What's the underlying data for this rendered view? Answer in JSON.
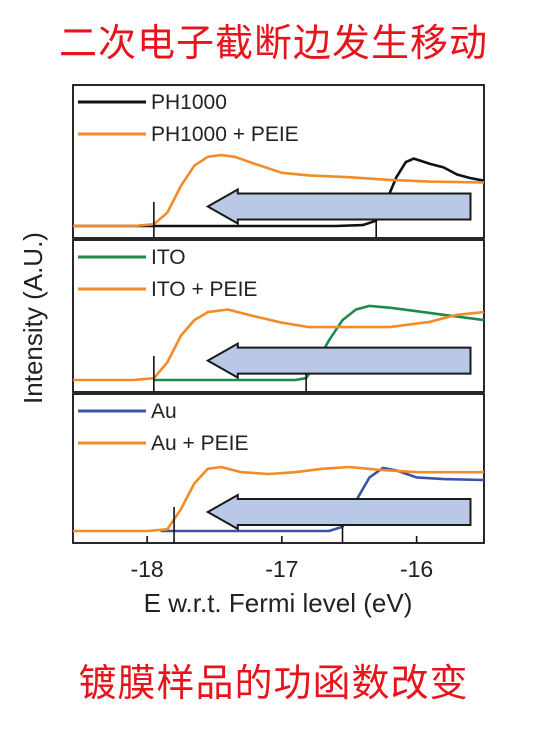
{
  "captions": {
    "top": "二次电子截断边发生移动",
    "bottom": "镀膜样品的功函数改变"
  },
  "colors": {
    "caption": "#e8141b",
    "black": "#111111",
    "orange": "#f28c28",
    "green": "#1f8a4c",
    "blue": "#3a55a8",
    "arrow_fill": "#b8c8e6",
    "arrow_stroke": "#1a1a1a"
  },
  "chart_data": {
    "type": "line",
    "xlabel": "E w.r.t. Fermi level (eV)",
    "ylabel": "Intensity (A.U.)",
    "xlim": [
      -18.55,
      -15.5
    ],
    "xticks": [
      {
        "value": -18,
        "label": "-18"
      },
      {
        "value": -17,
        "label": "-17"
      },
      {
        "value": -16,
        "label": "-16"
      }
    ],
    "panels": [
      {
        "legend": [
          "PH1000",
          "PH1000 + PEIE"
        ],
        "series": [
          {
            "name": "PH1000",
            "color": "black",
            "cutoff": -16.3,
            "points": [
              [
                -18.55,
                0.0
              ],
              [
                -16.6,
                0.0
              ],
              [
                -16.4,
                0.01
              ],
              [
                -16.3,
                0.06
              ],
              [
                -16.22,
                0.3
              ],
              [
                -16.15,
                0.55
              ],
              [
                -16.08,
                0.72
              ],
              [
                -16.02,
                0.76
              ],
              [
                -15.9,
                0.7
              ],
              [
                -15.8,
                0.66
              ],
              [
                -15.7,
                0.58
              ],
              [
                -15.6,
                0.54
              ],
              [
                -15.5,
                0.51
              ]
            ]
          },
          {
            "name": "PH1000 + PEIE",
            "color": "orange",
            "cutoff": -17.95,
            "points": [
              [
                -18.55,
                0.0
              ],
              [
                -18.1,
                0.0
              ],
              [
                -17.95,
                0.02
              ],
              [
                -17.85,
                0.15
              ],
              [
                -17.75,
                0.45
              ],
              [
                -17.65,
                0.68
              ],
              [
                -17.55,
                0.78
              ],
              [
                -17.45,
                0.8
              ],
              [
                -17.35,
                0.78
              ],
              [
                -17.2,
                0.7
              ],
              [
                -17.0,
                0.6
              ],
              [
                -16.8,
                0.57
              ],
              [
                -16.5,
                0.55
              ],
              [
                -16.2,
                0.52
              ],
              [
                -15.9,
                0.5
              ],
              [
                -15.5,
                0.49
              ]
            ]
          }
        ]
      },
      {
        "legend": [
          "ITO",
          "ITO + PEIE"
        ],
        "series": [
          {
            "name": "ITO",
            "color": "green",
            "cutoff": -16.82,
            "points": [
              [
                -17.95,
                0.0
              ],
              [
                -16.9,
                0.0
              ],
              [
                -16.82,
                0.02
              ],
              [
                -16.75,
                0.18
              ],
              [
                -16.65,
                0.45
              ],
              [
                -16.55,
                0.68
              ],
              [
                -16.45,
                0.8
              ],
              [
                -16.35,
                0.84
              ],
              [
                -16.2,
                0.82
              ],
              [
                -16.0,
                0.78
              ],
              [
                -15.8,
                0.74
              ],
              [
                -15.5,
                0.68
              ]
            ]
          },
          {
            "name": "ITO + PEIE",
            "color": "orange",
            "cutoff": -17.95,
            "points": [
              [
                -18.55,
                0.0
              ],
              [
                -18.1,
                0.0
              ],
              [
                -17.95,
                0.02
              ],
              [
                -17.85,
                0.2
              ],
              [
                -17.75,
                0.5
              ],
              [
                -17.65,
                0.68
              ],
              [
                -17.55,
                0.77
              ],
              [
                -17.4,
                0.8
              ],
              [
                -17.25,
                0.74
              ],
              [
                -17.0,
                0.65
              ],
              [
                -16.8,
                0.6
              ],
              [
                -16.5,
                0.6
              ],
              [
                -16.2,
                0.6
              ],
              [
                -15.9,
                0.66
              ],
              [
                -15.7,
                0.74
              ],
              [
                -15.5,
                0.77
              ]
            ]
          }
        ]
      },
      {
        "legend": [
          "Au",
          "Au + PEIE"
        ],
        "series": [
          {
            "name": "Au",
            "color": "blue",
            "cutoff": -16.55,
            "points": [
              [
                -17.9,
                0.0
              ],
              [
                -16.65,
                0.0
              ],
              [
                -16.55,
                0.05
              ],
              [
                -16.45,
                0.35
              ],
              [
                -16.35,
                0.62
              ],
              [
                -16.25,
                0.73
              ],
              [
                -16.15,
                0.7
              ],
              [
                -16.0,
                0.62
              ],
              [
                -15.8,
                0.6
              ],
              [
                -15.5,
                0.59
              ]
            ]
          },
          {
            "name": "Au + PEIE",
            "color": "orange",
            "cutoff": -17.8,
            "points": [
              [
                -18.55,
                0.0
              ],
              [
                -18.0,
                0.0
              ],
              [
                -17.85,
                0.02
              ],
              [
                -17.75,
                0.25
              ],
              [
                -17.65,
                0.55
              ],
              [
                -17.55,
                0.72
              ],
              [
                -17.45,
                0.74
              ],
              [
                -17.3,
                0.68
              ],
              [
                -17.1,
                0.66
              ],
              [
                -16.9,
                0.68
              ],
              [
                -16.7,
                0.72
              ],
              [
                -16.5,
                0.74
              ],
              [
                -16.3,
                0.71
              ],
              [
                -16.0,
                0.68
              ],
              [
                -15.5,
                0.68
              ]
            ]
          }
        ]
      }
    ]
  }
}
